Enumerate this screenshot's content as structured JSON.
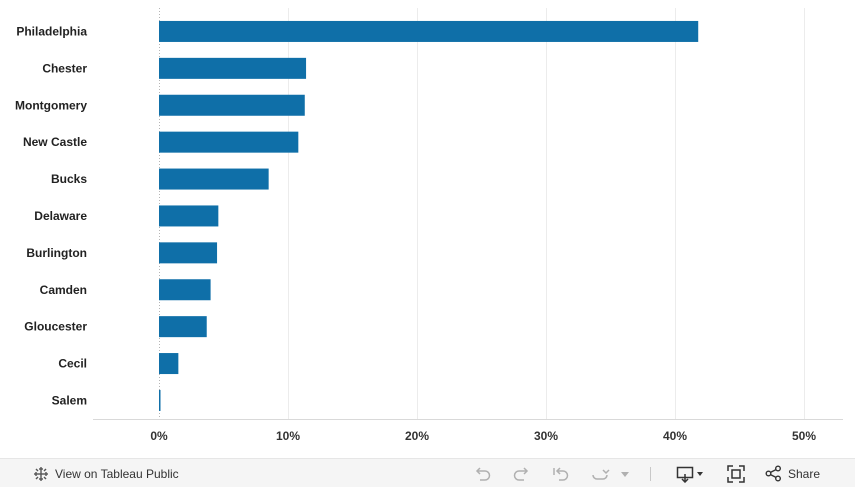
{
  "chart_data": {
    "type": "bar",
    "orientation": "horizontal",
    "categories": [
      "Philadelphia",
      "Chester",
      "Montgomery",
      "New Castle",
      "Bucks",
      "Delaware",
      "Burlington",
      "Camden",
      "Gloucester",
      "Cecil",
      "Salem"
    ],
    "values": [
      41.8,
      11.4,
      11.3,
      10.8,
      8.5,
      4.6,
      4.5,
      4.0,
      3.7,
      1.5,
      0.1
    ],
    "xlim": [
      0,
      50
    ],
    "xticks": [
      0,
      10,
      20,
      30,
      40,
      50
    ],
    "tick_labels": [
      "0%",
      "10%",
      "20%",
      "30%",
      "40%",
      "50%"
    ],
    "bar_color": "#0f6fa8",
    "gridlines": "vertical",
    "title": "",
    "xlabel": "",
    "ylabel": ""
  },
  "toolbar": {
    "view_label": "View on Tableau Public",
    "share_label": "Share",
    "colors": {
      "background": "#f5f5f5",
      "text": "#333333"
    },
    "icons": [
      "tableau-logo-icon",
      "undo-icon",
      "redo-icon",
      "revert-icon",
      "refresh-icon",
      "pause-dropdown-icon",
      "download-icon",
      "fullscreen-icon",
      "share-icon"
    ]
  }
}
